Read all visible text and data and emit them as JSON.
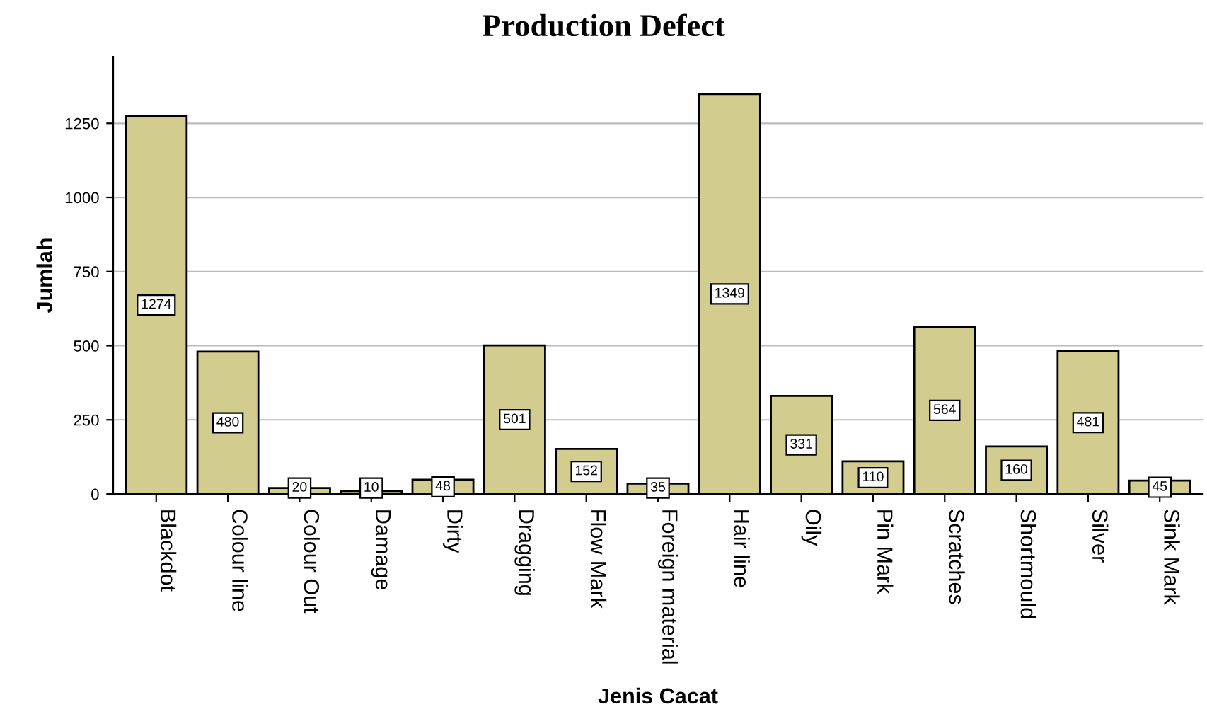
{
  "chart_data": {
    "type": "bar",
    "title": "Production Defect",
    "xlabel": "Jenis Cacat",
    "ylabel": "Jumlah",
    "categories": [
      "Blackdot",
      "Colour line",
      "Colour Out",
      "Damage",
      "Dirty",
      "Dragging",
      "Flow Mark",
      "Foreign material",
      "Hair line",
      "Oily",
      "Pin Mark",
      "Scratches",
      "Shortmould",
      "Silver",
      "Sink Mark"
    ],
    "values": [
      1274,
      480,
      20,
      10,
      48,
      501,
      152,
      35,
      1349,
      331,
      110,
      564,
      160,
      481,
      45
    ],
    "color": "#d2cc8e",
    "ylim": [
      0,
      1475
    ],
    "yticks": [
      0,
      250,
      500,
      750,
      1000,
      1250
    ],
    "grid": "y",
    "data_labels": true
  }
}
